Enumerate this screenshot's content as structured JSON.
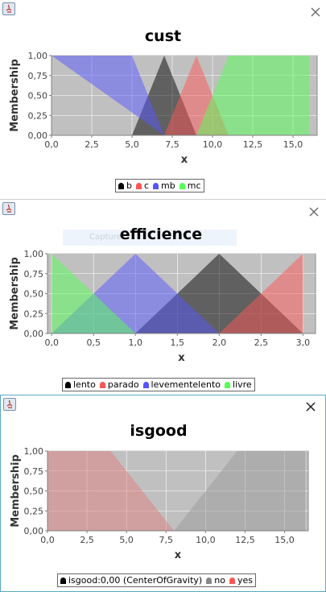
{
  "windows": [
    {
      "id": "cust",
      "close_icon": "close-icon",
      "chart_data": {
        "type": "area",
        "title": "cust",
        "xlabel": "x",
        "ylabel": "Membership",
        "xlim": [
          0,
          16.5
        ],
        "ylim": [
          0,
          1
        ],
        "xticks": [
          "0,0",
          "2,5",
          "5,0",
          "7,5",
          "10,0",
          "12,5",
          "15,0"
        ],
        "xtick_values": [
          0,
          2.5,
          5,
          7.5,
          10,
          12.5,
          15
        ],
        "yticks": [
          "0,00",
          "0,25",
          "0,50",
          "0,75",
          "1,00"
        ],
        "ytick_values": [
          0,
          0.25,
          0.5,
          0.75,
          1
        ],
        "series": [
          {
            "name": "b",
            "color": "#000000",
            "points": [
              [
                5,
                0
              ],
              [
                7,
                1
              ],
              [
                9,
                0
              ]
            ]
          },
          {
            "name": "c",
            "color": "#ff5555",
            "points": [
              [
                7,
                0
              ],
              [
                9,
                1
              ],
              [
                11,
                0
              ]
            ]
          },
          {
            "name": "mb",
            "color": "#5555ff",
            "points": [
              [
                0,
                1
              ],
              [
                5,
                1
              ],
              [
                7,
                0
              ]
            ]
          },
          {
            "name": "mc",
            "color": "#55ff55",
            "points": [
              [
                9,
                0
              ],
              [
                11,
                1
              ],
              [
                16,
                1
              ],
              [
                16,
                0
              ]
            ]
          }
        ]
      },
      "legend": [
        {
          "label": "b",
          "color": "#000000"
        },
        {
          "label": "c",
          "color": "#ff5555"
        },
        {
          "label": "mb",
          "color": "#5555ff"
        },
        {
          "label": "mc",
          "color": "#55ff55"
        }
      ]
    },
    {
      "id": "efficience",
      "close_icon": "close-icon",
      "chart_data": {
        "type": "area",
        "title": "efficience",
        "xlabel": "x",
        "ylabel": "Membership",
        "xlim": [
          -0.05,
          3.15
        ],
        "ylim": [
          0,
          1
        ],
        "xticks": [
          "0,0",
          "0,5",
          "1,0",
          "1,5",
          "2,0",
          "2,5",
          "3,0"
        ],
        "xtick_values": [
          0,
          0.5,
          1,
          1.5,
          2,
          2.5,
          3
        ],
        "yticks": [
          "0,00",
          "0,25",
          "0,50",
          "0,75",
          "1,00"
        ],
        "ytick_values": [
          0,
          0.25,
          0.5,
          0.75,
          1
        ],
        "series": [
          {
            "name": "lento",
            "color": "#000000",
            "points": [
              [
                1,
                0
              ],
              [
                2,
                1
              ],
              [
                3,
                0
              ]
            ]
          },
          {
            "name": "parado",
            "color": "#ff5555",
            "points": [
              [
                2,
                0
              ],
              [
                3,
                1
              ],
              [
                3,
                0
              ]
            ]
          },
          {
            "name": "levementelento",
            "color": "#5555ff",
            "points": [
              [
                0,
                0
              ],
              [
                1,
                1
              ],
              [
                2,
                0
              ]
            ]
          },
          {
            "name": "livre",
            "color": "#55ff55",
            "points": [
              [
                0,
                1
              ],
              [
                1,
                0
              ],
              [
                0,
                0
              ]
            ]
          }
        ]
      },
      "legend": [
        {
          "label": "lento",
          "color": "#000000"
        },
        {
          "label": "parado",
          "color": "#ff5555"
        },
        {
          "label": "levementelento",
          "color": "#5555ff"
        },
        {
          "label": "livre",
          "color": "#55ff55"
        }
      ]
    },
    {
      "id": "isgood",
      "close_icon": "close-icon",
      "chart_data": {
        "type": "area",
        "title": "isgood",
        "xlabel": "x",
        "ylabel": "Membership",
        "xlim": [
          0,
          16.5
        ],
        "ylim": [
          0,
          1
        ],
        "xticks": [
          "0,0",
          "2,5",
          "5,0",
          "7,5",
          "10,0",
          "12,5",
          "15,0"
        ],
        "xtick_values": [
          0,
          2.5,
          5,
          7.5,
          10,
          12.5,
          15
        ],
        "yticks": [
          "0,00",
          "0,25",
          "0,50",
          "0,75",
          "1,00"
        ],
        "ytick_values": [
          0,
          0.25,
          0.5,
          0.75,
          1
        ],
        "series": [
          {
            "name": "no",
            "color": "#999999",
            "points": [
              [
                8,
                0
              ],
              [
                12,
                1
              ],
              [
                16.3,
                1
              ],
              [
                16.3,
                0
              ]
            ]
          },
          {
            "name": "yes",
            "color": "#e08080",
            "points": [
              [
                0,
                1
              ],
              [
                4,
                1
              ],
              [
                8,
                0
              ],
              [
                0,
                0
              ]
            ]
          }
        ]
      },
      "legend": [
        {
          "label": "isgood:0,00 (CenterOfGravity)",
          "color": "#000000"
        },
        {
          "label": "no",
          "color": "#888888"
        },
        {
          "label": "yes",
          "color": "#ff5555"
        }
      ]
    }
  ],
  "watermark_text": "Capture",
  "app_icon": "java-icon"
}
